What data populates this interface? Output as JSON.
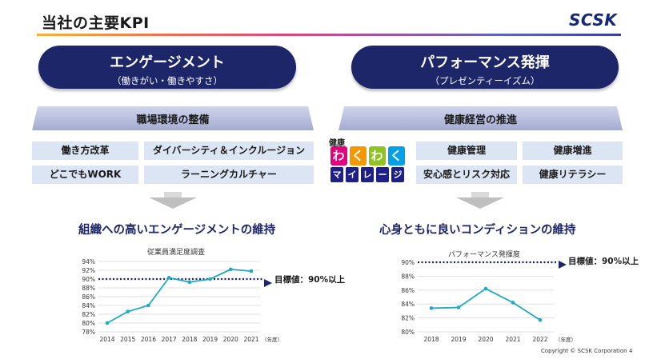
{
  "header": {
    "title": "当社の主要KPI",
    "logo": "SCSK"
  },
  "left": {
    "pill_title": "エンゲージメント",
    "pill_sub": "（働きがい・働きやすさ）",
    "band": "職場環境の整備",
    "items": [
      "働き方改革",
      "ダイバーシティ＆インクルージョン",
      "どこでもWORK",
      "ラーニングカルチャー"
    ],
    "heading": "組織への高いエンゲージメントの維持",
    "target_label": "目標値：90%以上"
  },
  "right": {
    "pill_title": "パフォーマンス発揮",
    "pill_sub": "（プレゼンティーイズム）",
    "band": "健康経営の推進",
    "items": [
      "健康管理",
      "健康増進",
      "安心感とリスク対応",
      "健康リテラシー"
    ],
    "badge": {
      "top": "健康",
      "row1": [
        "わ",
        "く",
        "わ",
        "く"
      ],
      "row2": [
        "マ",
        "イ",
        "レ",
        "ー",
        "ジ"
      ]
    },
    "heading": "心身ともに良いコンディションの維持",
    "target_label": "目標値：90%以上"
  },
  "footer": {
    "copyright": "Copyright © SCSK Corporation",
    "page": "4"
  },
  "colors": {
    "navy": "#1d2668",
    "line": "#1fa9c4",
    "target": "#1d2668",
    "grid": "#d9d9d9"
  },
  "chart_data": [
    {
      "type": "line",
      "title": "従業員満足度調査",
      "x": [
        "2014",
        "2015",
        "2016",
        "2017",
        "2018",
        "2019",
        "2020",
        "2021"
      ],
      "values": [
        80.0,
        82.6,
        84.0,
        90.3,
        89.3,
        90.0,
        92.2,
        91.8
      ],
      "ylim": [
        78,
        94
      ],
      "yticks": [
        78,
        80,
        82,
        84,
        86,
        88,
        90,
        92,
        94
      ],
      "ytick_labels": [
        "78%",
        "80%",
        "82%",
        "84%",
        "86%",
        "88%",
        "90%",
        "92%",
        "94%"
      ],
      "xunit": "（年度）",
      "target": 90,
      "grid": true
    },
    {
      "type": "line",
      "title": "パフォーマンス発揮度",
      "x": [
        "2018",
        "2019",
        "2020",
        "2021",
        "2022"
      ],
      "values": [
        83.4,
        83.5,
        86.2,
        84.2,
        81.7
      ],
      "ylim": [
        80,
        90
      ],
      "yticks": [
        80,
        82,
        84,
        86,
        88,
        90
      ],
      "ytick_labels": [
        "80%",
        "82%",
        "84%",
        "86%",
        "88%",
        "90%"
      ],
      "xunit": "（年度）",
      "target": 90,
      "grid": true
    }
  ]
}
